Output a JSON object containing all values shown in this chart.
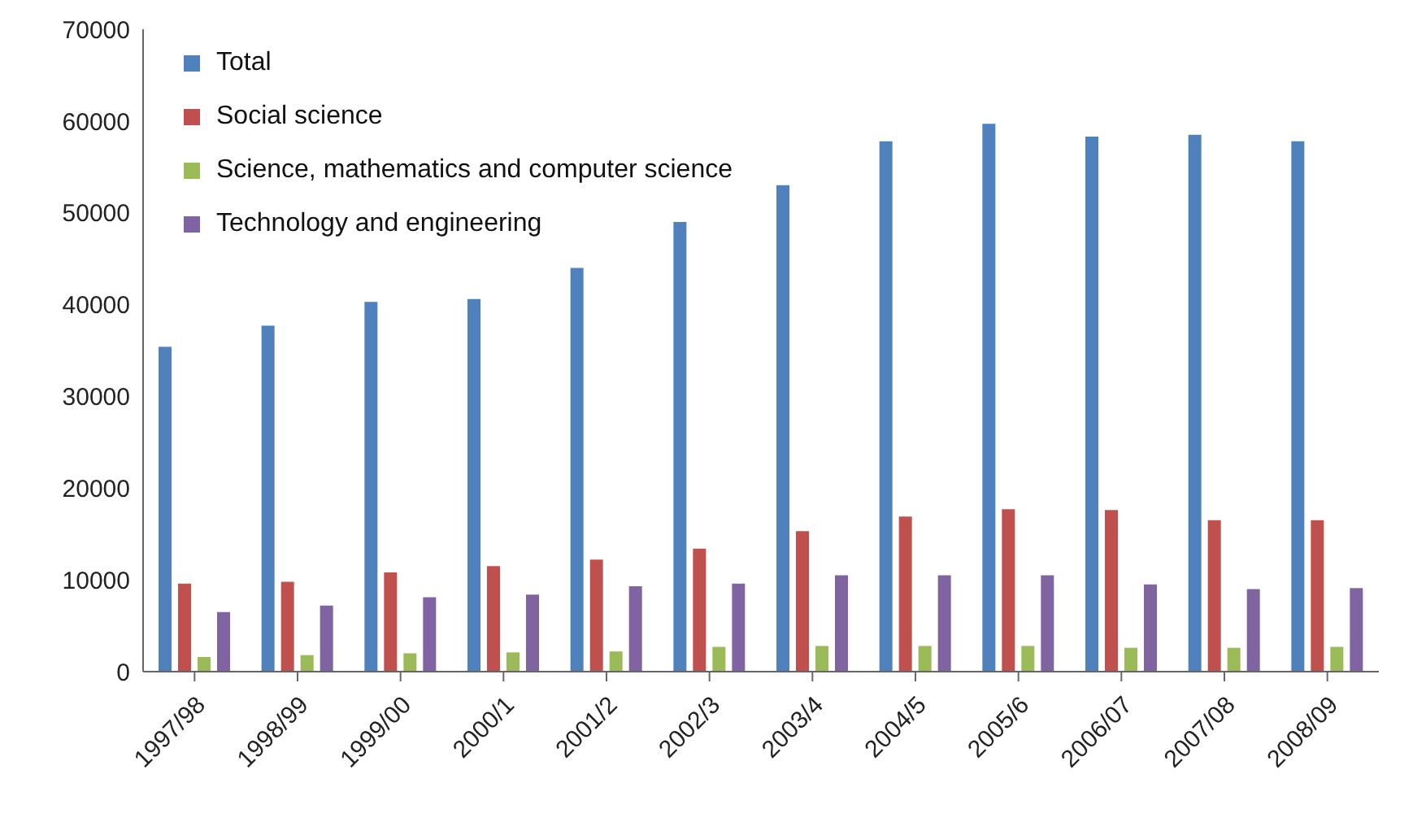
{
  "chart_data": {
    "type": "bar",
    "categories": [
      "1997/98",
      "1998/99",
      "1999/00",
      "2000/1",
      "2001/2",
      "2002/3",
      "2003/4",
      "2004/5",
      "2005/6",
      "2006/07",
      "2007/08",
      "2008/09"
    ],
    "series": [
      {
        "name": "Total",
        "color": "#4f81bd",
        "values": [
          35400,
          37700,
          40300,
          40600,
          44000,
          49000,
          53000,
          57800,
          59700,
          58300,
          58500,
          57800
        ]
      },
      {
        "name": "Social science",
        "color": "#c0504d",
        "values": [
          9600,
          9800,
          10800,
          11500,
          12200,
          13400,
          15300,
          16900,
          17700,
          17600,
          16500,
          16500
        ]
      },
      {
        "name": "Science, mathematics and computer science",
        "color": "#9bbb59",
        "values": [
          1600,
          1800,
          2000,
          2100,
          2200,
          2700,
          2800,
          2800,
          2800,
          2600,
          2600,
          2700
        ]
      },
      {
        "name": "Technology and engineering",
        "color": "#8064a2",
        "values": [
          6500,
          7200,
          8100,
          8400,
          9300,
          9600,
          10500,
          10500,
          10500,
          9500,
          9000,
          9100
        ]
      }
    ],
    "ylim": [
      0,
      70000
    ],
    "yticks": [
      0,
      10000,
      20000,
      30000,
      40000,
      50000,
      60000,
      70000
    ],
    "grid": false,
    "legend": "top left"
  }
}
